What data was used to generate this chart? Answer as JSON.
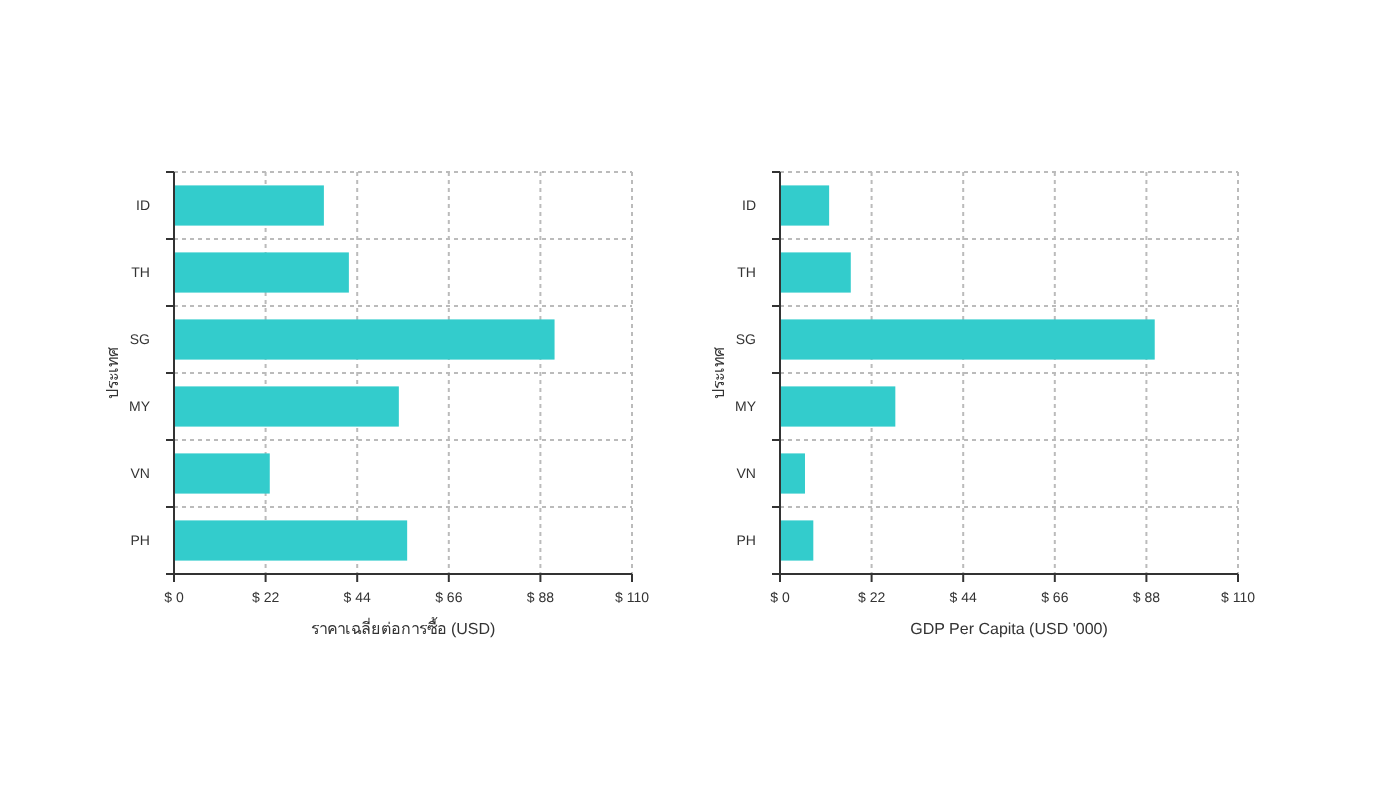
{
  "chart_data": [
    {
      "type": "bar",
      "orientation": "horizontal",
      "categories": [
        "ID",
        "TH",
        "SG",
        "MY",
        "VN",
        "PH"
      ],
      "values": [
        36,
        42,
        91.4,
        54,
        23,
        56
      ],
      "color": "#33cccc",
      "xlabel": "ราคาเฉลี่ยต่อการซื้อ (USD)",
      "ylabel": "ประเทศ",
      "xlim": [
        0,
        110
      ],
      "xticks": [
        {
          "value": 0,
          "label": "$ 0"
        },
        {
          "value": 22,
          "label": "$ 22"
        },
        {
          "value": 44,
          "label": "$ 44"
        },
        {
          "value": 66,
          "label": "$ 66"
        },
        {
          "value": 88,
          "label": "$ 88"
        },
        {
          "value": 110,
          "label": "$ 110"
        }
      ],
      "grid": true
    },
    {
      "type": "bar",
      "orientation": "horizontal",
      "categories": [
        "ID",
        "TH",
        "SG",
        "MY",
        "VN",
        "PH"
      ],
      "values": [
        11.8,
        17,
        90,
        27.7,
        6,
        8
      ],
      "color": "#33cccc",
      "xlabel": "GDP Per Capita (USD '000)",
      "ylabel": "ประเทศ",
      "xlim": [
        0,
        110
      ],
      "xticks": [
        {
          "value": 0,
          "label": "$ 0"
        },
        {
          "value": 22,
          "label": "$ 22"
        },
        {
          "value": 44,
          "label": "$ 44"
        },
        {
          "value": 66,
          "label": "$ 66"
        },
        {
          "value": 88,
          "label": "$ 88"
        },
        {
          "value": 110,
          "label": "$ 110"
        }
      ],
      "grid": true
    }
  ]
}
